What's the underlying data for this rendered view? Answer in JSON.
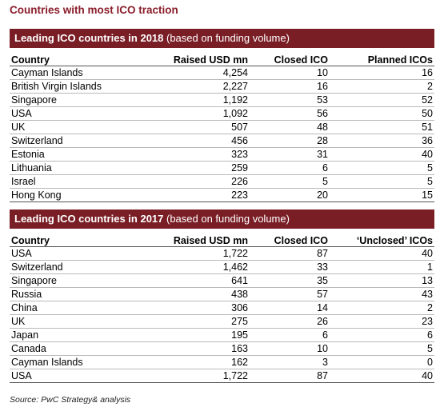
{
  "title": "Countries with most ICO traction",
  "table_2018": {
    "heading_bold": "Leading ICO countries in 2018",
    "heading_rest": " (based on funding volume)",
    "columns": [
      "Country",
      "Raised USD mn",
      "Closed ICO",
      "Planned ICOs"
    ],
    "rows": [
      [
        "Cayman Islands",
        "4,254",
        "10",
        "16"
      ],
      [
        "British Virgin Islands",
        "2,227",
        "16",
        "2"
      ],
      [
        "Singapore",
        "1,192",
        "53",
        "52"
      ],
      [
        "USA",
        "1,092",
        "56",
        "50"
      ],
      [
        "UK",
        "507",
        "48",
        "51"
      ],
      [
        "Switzerland",
        "456",
        "28",
        "36"
      ],
      [
        "Estonia",
        "323",
        "31",
        "40"
      ],
      [
        "Lithuania",
        "259",
        "6",
        "5"
      ],
      [
        "Israel",
        "226",
        "5",
        "5"
      ],
      [
        "Hong Kong",
        "223",
        "20",
        "15"
      ]
    ]
  },
  "table_2017": {
    "heading_bold": "Leading ICO countries in 2017",
    "heading_rest": " (based on funding volume)",
    "columns": [
      "Country",
      "Raised USD mn",
      "Closed ICO",
      "‘Unclosed’ ICOs"
    ],
    "rows": [
      [
        "USA",
        "1,722",
        "87",
        "40"
      ],
      [
        "Switzerland",
        "1,462",
        "33",
        "1"
      ],
      [
        "Singapore",
        "641",
        "35",
        "13"
      ],
      [
        "Russia",
        "438",
        "57",
        "43"
      ],
      [
        "China",
        "306",
        "14",
        "2"
      ],
      [
        "UK",
        "275",
        "26",
        "23"
      ],
      [
        "Japan",
        "195",
        "6",
        "6"
      ],
      [
        "Canada",
        "163",
        "10",
        "5"
      ],
      [
        "Cayman Islands",
        "162",
        "3",
        "0"
      ],
      [
        "USA",
        "1,722",
        "87",
        "40"
      ]
    ]
  },
  "source": "Source: PwC Strategy& analysis"
}
